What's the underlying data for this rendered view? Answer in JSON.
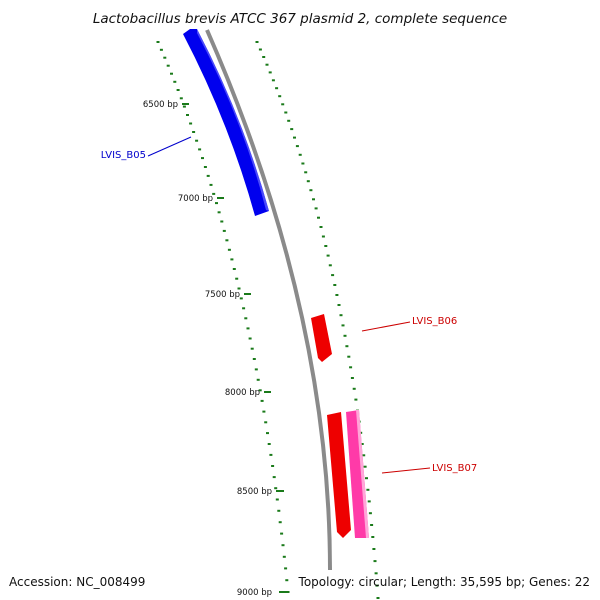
{
  "title": "Lactobacillus brevis ATCC 367 plasmid 2, complete sequence",
  "footer": {
    "accession": "Accession: NC_008499",
    "summary": "Topology: circular; Length: 35,595 bp; Genes: 22"
  },
  "ticks": [
    {
      "label": "6500 bp"
    },
    {
      "label": "7000 bp"
    },
    {
      "label": "7500 bp"
    },
    {
      "label": "8000 bp"
    },
    {
      "label": "8500 bp"
    },
    {
      "label": "9000 bp"
    }
  ],
  "genes": [
    {
      "name": "LVIS_B05",
      "color": "#0000cc"
    },
    {
      "name": "LVIS_B06",
      "color": "#cc0000"
    },
    {
      "name": "LVIS_B07",
      "color": "#cc0000"
    }
  ],
  "colors": {
    "backbone": "#8a8a8a",
    "ticks": "#1a7a1a",
    "gene_forward": "#ee0000",
    "gene_reverse": "#0000ee",
    "gene_pink": "#ff3aa8"
  }
}
